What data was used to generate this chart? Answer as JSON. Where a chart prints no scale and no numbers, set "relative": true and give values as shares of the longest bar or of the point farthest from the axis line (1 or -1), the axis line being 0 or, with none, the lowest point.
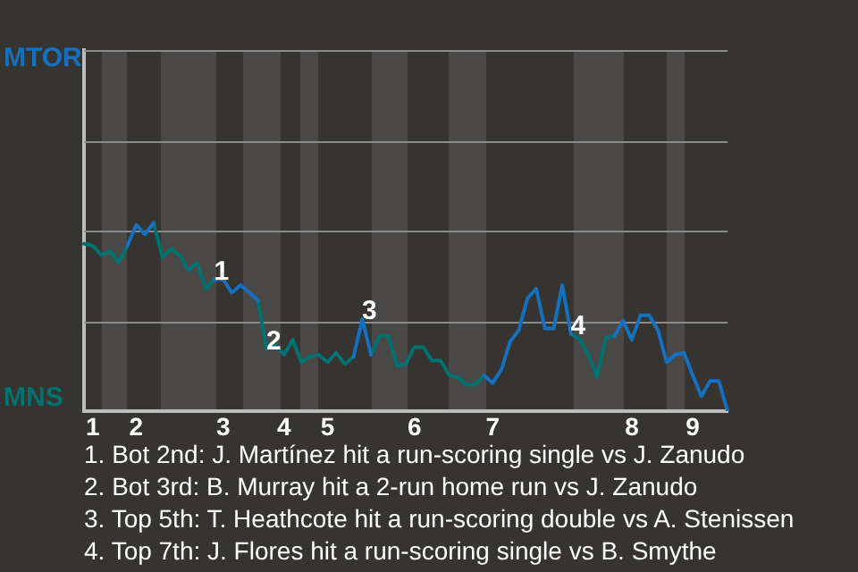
{
  "chart_data": {
    "type": "line",
    "relative": true,
    "marker": "none",
    "legend": "left",
    "categories": [
      null,
      "1",
      null,
      null,
      null,
      null,
      "2",
      null,
      null,
      null,
      null,
      null,
      null,
      null,
      null,
      null,
      "3",
      null,
      null,
      null,
      null,
      null,
      null,
      "4",
      null,
      null,
      null,
      null,
      "5",
      null,
      null,
      null,
      null,
      null,
      null,
      null,
      null,
      null,
      "6",
      null,
      null,
      null,
      null,
      null,
      null,
      null,
      null,
      "7",
      null,
      null,
      null,
      null,
      null,
      null,
      null,
      null,
      null,
      null,
      null,
      null,
      null,
      null,
      null,
      "8",
      null,
      null,
      null,
      null,
      null,
      null,
      "9",
      null,
      null,
      null,
      null
    ],
    "series": [
      {
        "name": "MTOR",
        "color": "#1570c0",
        "values": [
          null,
          null,
          null,
          null,
          null,
          0.88,
          0.99,
          0.94,
          1,
          null,
          null,
          null,
          null,
          null,
          null,
          0.7,
          0.7,
          0.63,
          0.67,
          0.63,
          0.59,
          null,
          null,
          null,
          null,
          null,
          null,
          null,
          null,
          null,
          null,
          0.29,
          0.49,
          0.3,
          null,
          null,
          null,
          null,
          null,
          null,
          null,
          null,
          null,
          null,
          null,
          null,
          0.19,
          0.15,
          0.22,
          0.37,
          0.43,
          0.6,
          0.65,
          0.44,
          0.44,
          0.67,
          0.41,
          null,
          null,
          null,
          null,
          0.4,
          0.48,
          0.38,
          0.51,
          0.51,
          0.43,
          0.26,
          0.3,
          0.31,
          0.19,
          0.08,
          0.16,
          0.16,
          0
        ]
      },
      {
        "name": "MNS",
        "color": "#007272",
        "values": [
          0.89,
          0.88,
          0.83,
          0.85,
          0.79,
          0.88,
          null,
          null,
          1,
          0.82,
          0.86,
          0.83,
          0.75,
          0.79,
          0.65,
          0.7,
          null,
          null,
          null,
          null,
          0.59,
          0.33,
          0.35,
          0.3,
          0.38,
          0.26,
          0.29,
          0.3,
          0.26,
          0.31,
          0.25,
          0.29,
          null,
          0.3,
          0.4,
          0.4,
          0.24,
          0.25,
          0.34,
          0.34,
          0.27,
          0.27,
          0.19,
          0.18,
          0.14,
          0.14,
          0.19,
          null,
          null,
          null,
          null,
          null,
          null,
          null,
          null,
          null,
          0.41,
          0.38,
          0.3,
          0.18,
          0.39,
          0.4,
          null,
          null,
          null,
          null,
          null,
          null,
          null,
          null,
          null,
          null,
          null,
          null,
          null
        ]
      }
    ],
    "ref_lines": [
      {
        "axis": "y",
        "value": 0.48,
        "color": "#8a8a8a"
      },
      {
        "axis": "y",
        "value": 0.96,
        "color": "#8a8a8a"
      },
      {
        "axis": "y",
        "value": 1.44,
        "color": "#8a8a8a"
      },
      {
        "axis": "y",
        "value": 1.92,
        "color": "#8a8a8a"
      }
    ],
    "annotations": [
      {
        "text": "1",
        "y": 0.7
      },
      {
        "text": "2",
        "y": 0.33
      },
      {
        "text": "3",
        "y": 0.49
      },
      {
        "text": "4",
        "y": 0.41
      },
      "1. Bot 2nd: J. Martínez hit a run-scoring single vs J. Zanudo",
      "2. Bot 3rd: B. Murray hit a 2-run home run vs J. Zanudo",
      "3. Top 5th: T. Heathcote hit a run-scoring double vs A. Stenissen",
      "4. Top 7th: J. Flores hit a run-scoring single vs B. Smythe"
    ]
  }
}
